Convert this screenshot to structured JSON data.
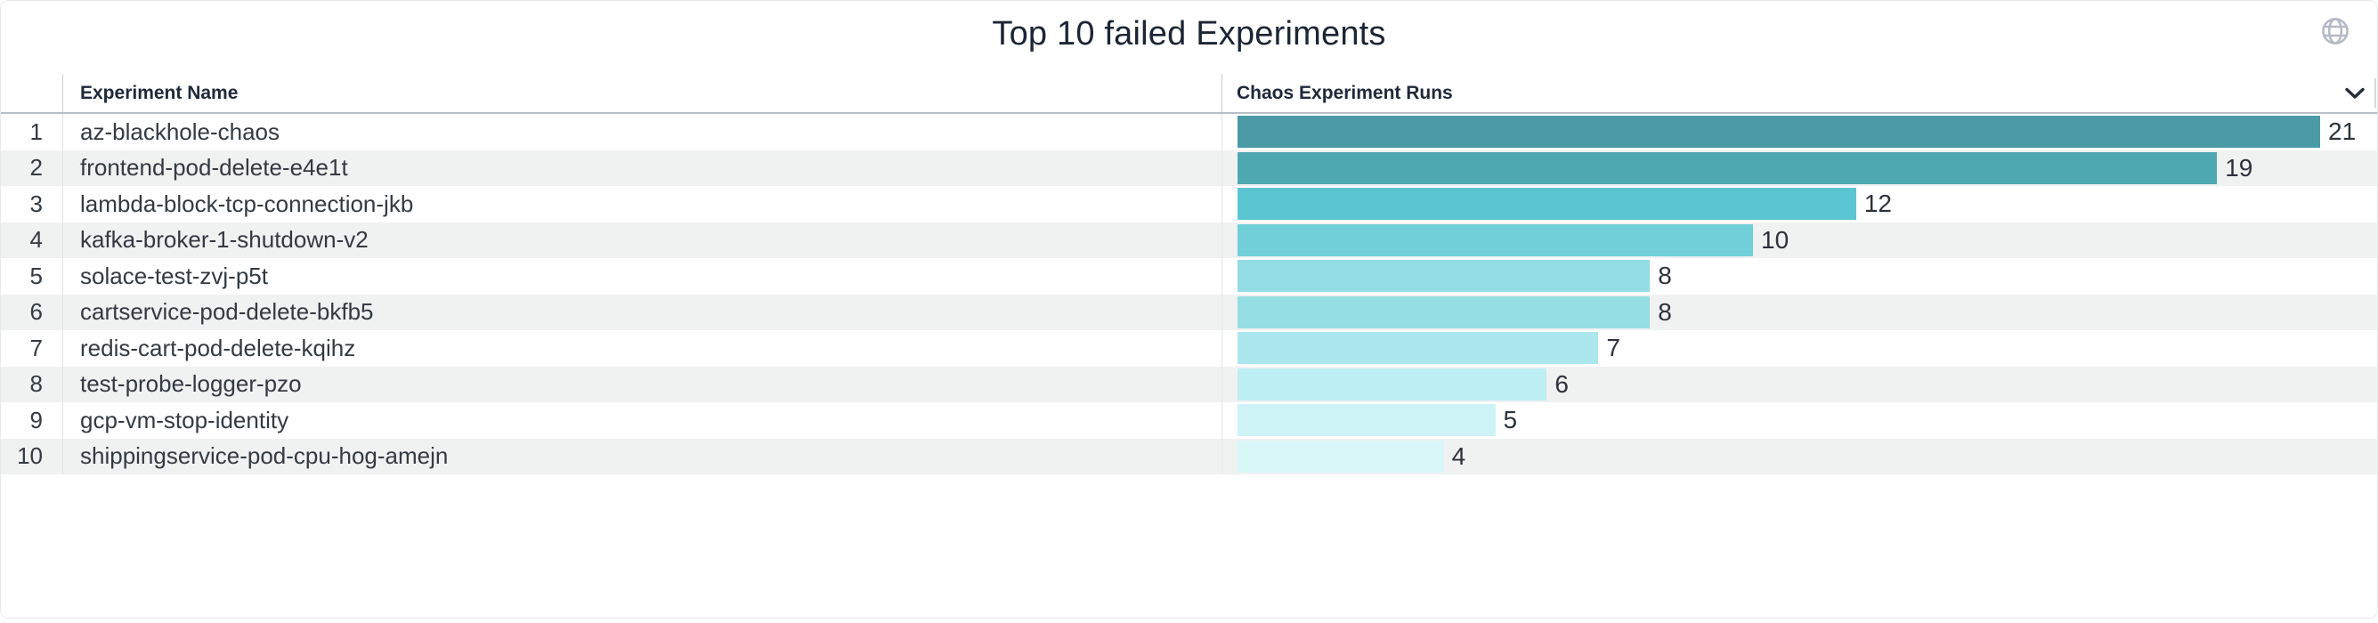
{
  "panel": {
    "title": "Top 10 failed Experiments",
    "globe_icon": "globe-icon",
    "globe_color": "#b4bac3"
  },
  "table": {
    "columns": [
      {
        "label": "Experiment Name"
      },
      {
        "label": "Chaos Experiment Runs",
        "sort_icon": "chevron-down-icon"
      }
    ],
    "rows": [
      {
        "rank": "1",
        "name": "az-blackhole-chaos",
        "runs": "21",
        "bar_color": "#4A9BA6"
      },
      {
        "rank": "2",
        "name": "frontend-pod-delete-e4e1t",
        "runs": "19",
        "bar_color": "#4EA8B1"
      },
      {
        "rank": "3",
        "name": "lambda-block-tcp-connection-jkb",
        "runs": "12",
        "bar_color": "#5BC6D1"
      },
      {
        "rank": "4",
        "name": "kafka-broker-1-shutdown-v2",
        "runs": "10",
        "bar_color": "#70CFD9"
      },
      {
        "rank": "5",
        "name": "solace-test-zvj-p5t",
        "runs": "8",
        "bar_color": "#93DCE3"
      },
      {
        "rank": "6",
        "name": "cartservice-pod-delete-bkfb5",
        "runs": "8",
        "bar_color": "#95DEE3"
      },
      {
        "rank": "7",
        "name": "redis-cart-pod-delete-kqihz",
        "runs": "7",
        "bar_color": "#ABE7EC"
      },
      {
        "rank": "8",
        "name": "test-probe-logger-pzo",
        "runs": "6",
        "bar_color": "#BDEEF1"
      },
      {
        "rank": "9",
        "name": "gcp-vm-stop-identity",
        "runs": "5",
        "bar_color": "#CDF3F6"
      },
      {
        "rank": "10",
        "name": "shippingservice-pod-cpu-hog-amejn",
        "runs": "4",
        "bar_color": "#D9F7F9"
      }
    ]
  },
  "chart_data": {
    "type": "bar",
    "orientation": "horizontal",
    "title": "Top 10 failed Experiments",
    "categories": [
      "az-blackhole-chaos",
      "frontend-pod-delete-e4e1t",
      "lambda-block-tcp-connection-jkb",
      "kafka-broker-1-shutdown-v2",
      "solace-test-zvj-p5t",
      "cartservice-pod-delete-bkfb5",
      "redis-cart-pod-delete-kqihz",
      "test-probe-logger-pzo",
      "gcp-vm-stop-identity",
      "shippingservice-pod-cpu-hog-amejn"
    ],
    "values": [
      21,
      19,
      12,
      10,
      8,
      8,
      7,
      6,
      5,
      4
    ],
    "series_label": "Chaos Experiment Runs",
    "xlabel": "Chaos Experiment Runs",
    "ylabel": "Experiment Name",
    "xlim": [
      0,
      21
    ],
    "data_labels": true,
    "grid": false,
    "legend": "none",
    "bar_colors": [
      "#4A9BA6",
      "#4EA8B1",
      "#5BC6D1",
      "#70CFD9",
      "#93DCE3",
      "#95DEE3",
      "#ABE7EC",
      "#BDEEF1",
      "#CDF3F6",
      "#D9F7F9"
    ],
    "row_stripe_color": "#f0f1f1"
  }
}
